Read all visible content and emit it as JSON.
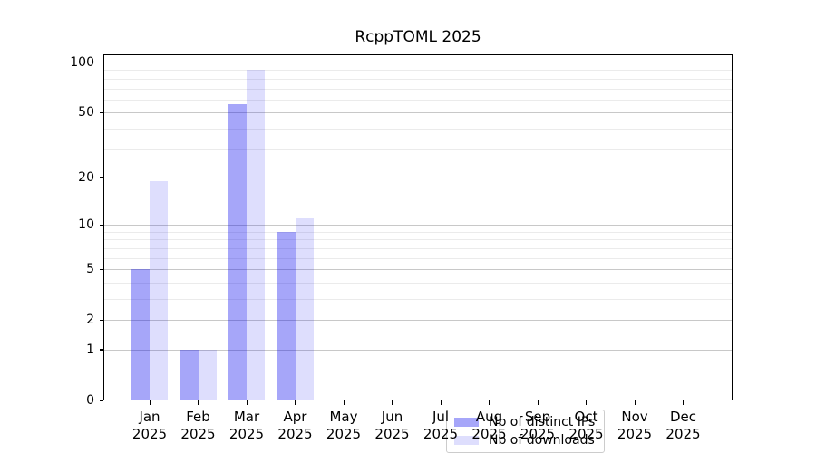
{
  "chart_data": {
    "type": "bar",
    "title": "RcppTOML 2025",
    "categories": [
      "Jan",
      "Feb",
      "Mar",
      "Apr",
      "May",
      "Jun",
      "Jul",
      "Aug",
      "Sep",
      "Oct",
      "Nov",
      "Dec"
    ],
    "category_year": "2025",
    "series": [
      {
        "name": "Nb of distinct IPs",
        "color": "#0000ee",
        "alpha": 0.35,
        "composited_color": "#a8a8f6",
        "values": [
          5,
          1,
          56,
          9,
          0,
          0,
          0,
          0,
          0,
          0,
          0,
          0
        ]
      },
      {
        "name": "Nb of downloads",
        "color": "#0000ee",
        "alpha": 0.13,
        "composited_color": "#dcdcf9",
        "values": [
          19,
          1,
          90,
          11,
          0,
          0,
          0,
          0,
          0,
          0,
          0,
          0
        ]
      }
    ],
    "y_scale": "log1p",
    "y_ticks": [
      0,
      1,
      2,
      5,
      10,
      20,
      50,
      100
    ],
    "y_minor_gridlines": [
      3,
      4,
      6,
      7,
      8,
      9,
      30,
      40,
      60,
      70,
      80,
      90
    ],
    "ylim": [
      0,
      112
    ],
    "xlabel": "",
    "ylabel": "",
    "grid": true,
    "legend_position": "lower center"
  },
  "colors": {
    "major_grid": "#c8c8c8",
    "minor_grid": "#ebebeb",
    "spine": "#000000",
    "background": "#ffffff",
    "legend_border": "#cccccc"
  }
}
